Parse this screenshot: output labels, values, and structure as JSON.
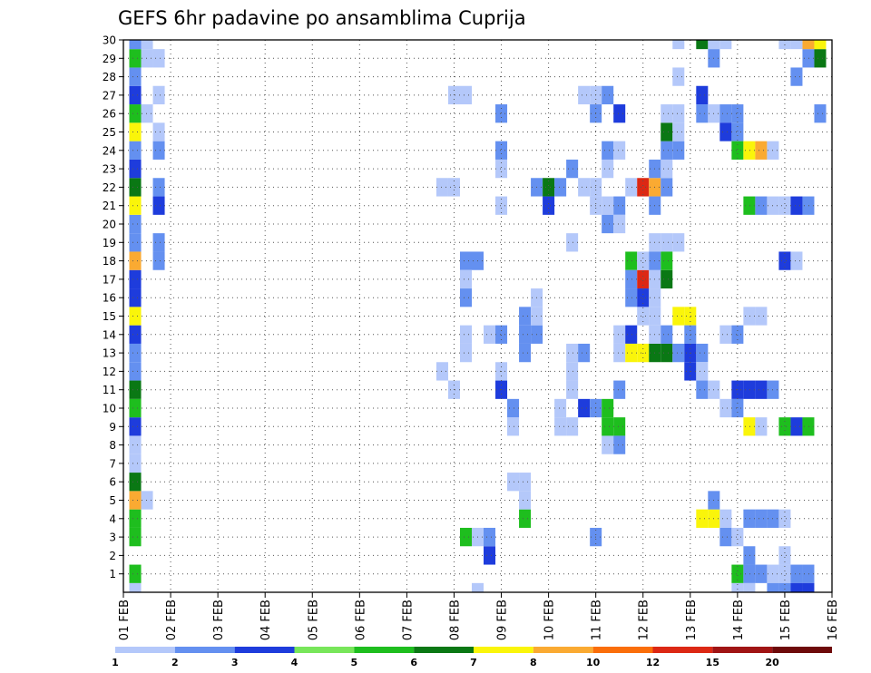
{
  "chart_data": {
    "type": "heatmap",
    "title": "GEFS 6hr padavine po ansamblima Cuprija",
    "xlabel": "",
    "ylabel": "",
    "x_ticks": [
      "01 FEB",
      "02 FEB",
      "03 FEB",
      "04 FEB",
      "05 FEB",
      "06 FEB",
      "07 FEB",
      "08 FEB",
      "09 FEB",
      "10 FEB",
      "11 FEB",
      "12 FEB",
      "13 FEB",
      "14 FEB",
      "15 FEB",
      "16 FEB"
    ],
    "y_ticks": [
      1,
      2,
      3,
      4,
      5,
      6,
      7,
      8,
      9,
      10,
      11,
      12,
      13,
      14,
      15,
      16,
      17,
      18,
      19,
      20,
      21,
      22,
      23,
      24,
      25,
      26,
      27,
      28,
      29,
      30
    ],
    "time_steps_per_day": 4,
    "x_range_steps": [
      0,
      60
    ],
    "y_range": [
      0,
      30
    ],
    "grid": true,
    "colorbar": {
      "levels": [
        1,
        2,
        3,
        4,
        5,
        6,
        7,
        8,
        10,
        12,
        15,
        20
      ],
      "labels": [
        "1",
        "2",
        "3",
        "4",
        "5",
        "6",
        "7",
        "8",
        "10",
        "12",
        "15",
        "20"
      ],
      "colors": [
        "#b4c8fa",
        "#6490f0",
        "#1e3cdc",
        "#78e65a",
        "#1ebe1e",
        "#0a7814",
        "#faf50a",
        "#faaa32",
        "#fa6e0a",
        "#dc2814",
        "#a01414",
        "#6e0a0a"
      ]
    },
    "cells_note": "each cell: [member, time_step (6h from 01 FEB 00Z), color_index into colorbar.colors]",
    "cells": [
      [
        0,
        1,
        0
      ],
      [
        1,
        1,
        4
      ],
      [
        3,
        1,
        4
      ],
      [
        4,
        1,
        4
      ],
      [
        5,
        1,
        7
      ],
      [
        6,
        1,
        5
      ],
      [
        7,
        1,
        0
      ],
      [
        8,
        1,
        0
      ],
      [
        9,
        1,
        2
      ],
      [
        10,
        1,
        4
      ],
      [
        11,
        1,
        5
      ],
      [
        12,
        1,
        1
      ],
      [
        13,
        1,
        1
      ],
      [
        14,
        1,
        2
      ],
      [
        15,
        1,
        6
      ],
      [
        16,
        1,
        2
      ],
      [
        17,
        1,
        2
      ],
      [
        18,
        1,
        7
      ],
      [
        19,
        1,
        1
      ],
      [
        20,
        1,
        1
      ],
      [
        21,
        1,
        6
      ],
      [
        22,
        1,
        5
      ],
      [
        23,
        1,
        2
      ],
      [
        24,
        1,
        1
      ],
      [
        25,
        1,
        6
      ],
      [
        26,
        1,
        4
      ],
      [
        27,
        1,
        2
      ],
      [
        28,
        1,
        1
      ],
      [
        29,
        1,
        4
      ],
      [
        30,
        1,
        1
      ],
      [
        5,
        2,
        0
      ],
      [
        26,
        2,
        0
      ],
      [
        30,
        2,
        0
      ],
      [
        29,
        2,
        0
      ],
      [
        18,
        3,
        1
      ],
      [
        19,
        3,
        1
      ],
      [
        21,
        3,
        2
      ],
      [
        22,
        3,
        1
      ],
      [
        24,
        3,
        1
      ],
      [
        25,
        3,
        0
      ],
      [
        27,
        3,
        0
      ],
      [
        29,
        3,
        0
      ],
      [
        0,
        30,
        0
      ],
      [
        3,
        29,
        4
      ],
      [
        3,
        30,
        0
      ],
      [
        12,
        27,
        0
      ],
      [
        11,
        28,
        0
      ],
      [
        22,
        27,
        0
      ],
      [
        22,
        28,
        0
      ],
      [
        27,
        28,
        0
      ],
      [
        27,
        29,
        0
      ],
      [
        13,
        29,
        0
      ],
      [
        14,
        29,
        0
      ],
      [
        16,
        29,
        1
      ],
      [
        18,
        29,
        1
      ],
      [
        17,
        29,
        0
      ],
      [
        18,
        30,
        1
      ],
      [
        2,
        31,
        2
      ],
      [
        14,
        31,
        0
      ],
      [
        3,
        31,
        1
      ],
      [
        14,
        32,
        1
      ],
      [
        11,
        32,
        2
      ],
      [
        24,
        32,
        1
      ],
      [
        23,
        32,
        0
      ],
      [
        21,
        32,
        0
      ],
      [
        12,
        32,
        0
      ],
      [
        26,
        32,
        1
      ],
      [
        6,
        33,
        0
      ],
      [
        6,
        34,
        0
      ],
      [
        9,
        33,
        0
      ],
      [
        10,
        33,
        1
      ],
      [
        4,
        34,
        4
      ],
      [
        13,
        34,
        1
      ],
      [
        14,
        34,
        1
      ],
      [
        5,
        34,
        0
      ],
      [
        15,
        34,
        1
      ],
      [
        22,
        35,
        1
      ],
      [
        22,
        36,
        5
      ],
      [
        21,
        36,
        2
      ],
      [
        22,
        37,
        1
      ],
      [
        14,
        35,
        1
      ],
      [
        15,
        35,
        0
      ],
      [
        16,
        35,
        0
      ],
      [
        10,
        37,
        0
      ],
      [
        9,
        37,
        0
      ],
      [
        9,
        38,
        0
      ],
      [
        13,
        38,
        0
      ],
      [
        13,
        39,
        1
      ],
      [
        12,
        38,
        0
      ],
      [
        11,
        38,
        0
      ],
      [
        19,
        38,
        0
      ],
      [
        10,
        39,
        2
      ],
      [
        10,
        40,
        1
      ],
      [
        3,
        40,
        1
      ],
      [
        8,
        41,
        0
      ],
      [
        9,
        41,
        4
      ],
      [
        9,
        42,
        4
      ],
      [
        8,
        42,
        1
      ],
      [
        10,
        41,
        4
      ],
      [
        21,
        41,
        0
      ],
      [
        23,
        41,
        0
      ],
      [
        21,
        42,
        1
      ],
      [
        24,
        41,
        1
      ],
      [
        24,
        42,
        0
      ],
      [
        27,
        40,
        0
      ],
      [
        27,
        39,
        0
      ],
      [
        23,
        38,
        1
      ],
      [
        22,
        39,
        0
      ],
      [
        26,
        40,
        1
      ],
      [
        27,
        41,
        1
      ],
      [
        20,
        41,
        1
      ],
      [
        20,
        42,
        0
      ],
      [
        13,
        42,
        0
      ],
      [
        14,
        42,
        0
      ],
      [
        11,
        42,
        1
      ],
      [
        21,
        40,
        0
      ],
      [
        22,
        40,
        0
      ],
      [
        26,
        42,
        2
      ],
      [
        14,
        43,
        2
      ],
      [
        13,
        43,
        6
      ],
      [
        13,
        44,
        6
      ],
      [
        15,
        44,
        0
      ],
      [
        15,
        45,
        0
      ],
      [
        22,
        43,
        0
      ],
      [
        18,
        43,
        4
      ],
      [
        17,
        43,
        1
      ],
      [
        17,
        44,
        9
      ],
      [
        16,
        43,
        1
      ],
      [
        16,
        44,
        2
      ],
      [
        18,
        44,
        0
      ],
      [
        17,
        45,
        0
      ],
      [
        16,
        45,
        0
      ],
      [
        22,
        44,
        9
      ],
      [
        22,
        45,
        7
      ],
      [
        17,
        46,
        5
      ],
      [
        22,
        46,
        1
      ],
      [
        13,
        45,
        5
      ],
      [
        13,
        46,
        5
      ],
      [
        13,
        47,
        1
      ],
      [
        14,
        45,
        0
      ],
      [
        14,
        46,
        1
      ],
      [
        19,
        45,
        0
      ],
      [
        19,
        46,
        0
      ],
      [
        19,
        47,
        0
      ],
      [
        23,
        46,
        0
      ],
      [
        24,
        46,
        1
      ],
      [
        23,
        45,
        1
      ],
      [
        21,
        45,
        1
      ],
      [
        25,
        46,
        5
      ],
      [
        26,
        46,
        0
      ],
      [
        26,
        47,
        0
      ],
      [
        28,
        47,
        0
      ],
      [
        30,
        47,
        0
      ],
      [
        18,
        46,
        4
      ],
      [
        18,
        45,
        1
      ],
      [
        24,
        47,
        1
      ],
      [
        25,
        47,
        0
      ],
      [
        15,
        47,
        6
      ],
      [
        15,
        48,
        6
      ],
      [
        13,
        48,
        2
      ],
      [
        12,
        48,
        2
      ],
      [
        13,
        49,
        1
      ],
      [
        12,
        49,
        0
      ],
      [
        14,
        48,
        1
      ],
      [
        11,
        49,
        1
      ],
      [
        11,
        50,
        0
      ],
      [
        10,
        51,
        0
      ],
      [
        10,
        52,
        1
      ],
      [
        4,
        49,
        6
      ],
      [
        4,
        50,
        6
      ],
      [
        5,
        50,
        1
      ],
      [
        4,
        51,
        0
      ],
      [
        3,
        51,
        1
      ],
      [
        3,
        52,
        0
      ],
      [
        14,
        51,
        0
      ],
      [
        14,
        52,
        1
      ],
      [
        27,
        49,
        2
      ],
      [
        26,
        49,
        1
      ],
      [
        26,
        50,
        0
      ],
      [
        26,
        51,
        1
      ],
      [
        25,
        51,
        2
      ],
      [
        25,
        52,
        1
      ],
      [
        0,
        52,
        0
      ],
      [
        0,
        53,
        0
      ],
      [
        30,
        49,
        5
      ],
      [
        30,
        50,
        0
      ],
      [
        29,
        50,
        1
      ],
      [
        30,
        51,
        0
      ],
      [
        26,
        52,
        1
      ],
      [
        1,
        52,
        4
      ],
      [
        1,
        53,
        1
      ],
      [
        2,
        53,
        1
      ],
      [
        24,
        52,
        4
      ],
      [
        24,
        53,
        6
      ],
      [
        4,
        53,
        1
      ],
      [
        4,
        54,
        1
      ],
      [
        4,
        55,
        1
      ],
      [
        4,
        56,
        0
      ],
      [
        11,
        52,
        2
      ],
      [
        11,
        53,
        2
      ],
      [
        11,
        54,
        2
      ],
      [
        11,
        55,
        1
      ],
      [
        15,
        53,
        0
      ],
      [
        15,
        54,
        0
      ],
      [
        9,
        53,
        6
      ],
      [
        9,
        54,
        0
      ],
      [
        21,
        53,
        4
      ],
      [
        21,
        54,
        1
      ],
      [
        21,
        55,
        0
      ],
      [
        21,
        56,
        0
      ],
      [
        21,
        57,
        2
      ],
      [
        21,
        58,
        1
      ],
      [
        24,
        54,
        7
      ],
      [
        24,
        55,
        0
      ],
      [
        1,
        54,
        1
      ],
      [
        1,
        55,
        0
      ],
      [
        1,
        56,
        0
      ],
      [
        1,
        57,
        1
      ],
      [
        1,
        58,
        1
      ],
      [
        0,
        55,
        1
      ],
      [
        0,
        56,
        1
      ],
      [
        0,
        57,
        2
      ],
      [
        0,
        58,
        2
      ],
      [
        9,
        56,
        4
      ],
      [
        9,
        57,
        2
      ],
      [
        9,
        58,
        4
      ],
      [
        18,
        56,
        2
      ],
      [
        18,
        57,
        0
      ],
      [
        28,
        57,
        1
      ],
      [
        29,
        58,
        1
      ],
      [
        29,
        59,
        5
      ],
      [
        30,
        58,
        7
      ],
      [
        30,
        59,
        6
      ],
      [
        30,
        57,
        0
      ],
      [
        30,
        56,
        0
      ],
      [
        26,
        59,
        1
      ],
      [
        2,
        56,
        0
      ]
    ]
  }
}
